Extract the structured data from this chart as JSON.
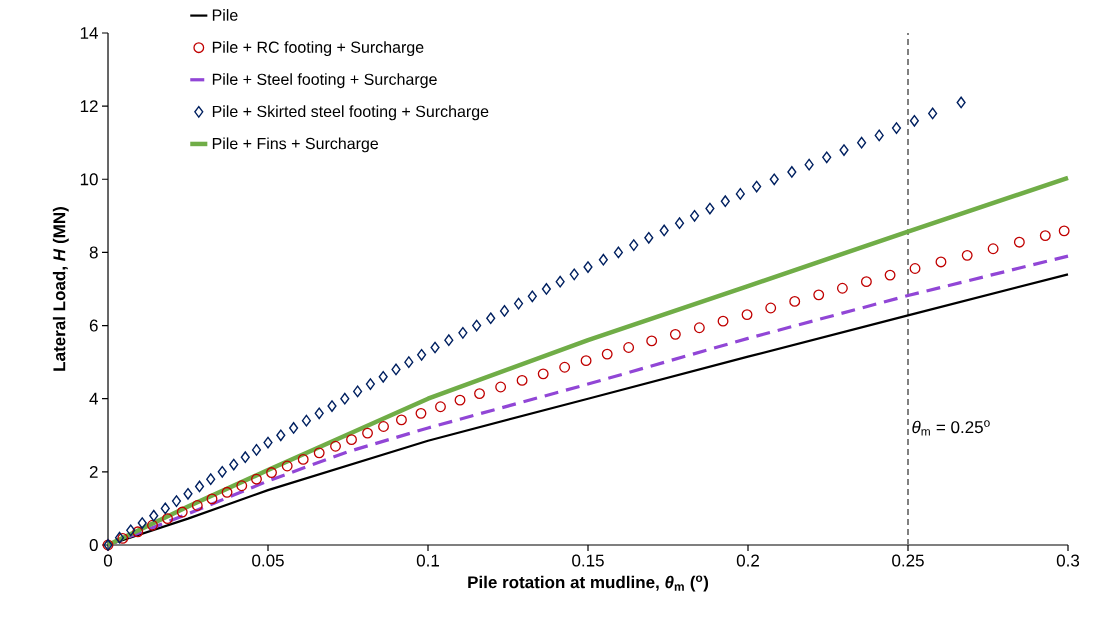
{
  "chart_data": {
    "type": "line",
    "xlabel": "Pile rotation at mudline, *θ*$_{m}$ ($^{o}$)",
    "ylabel": "Lateral Load, *H* (MN)",
    "xlim": [
      0,
      0.3
    ],
    "ylim": [
      0,
      14
    ],
    "xticks": [
      0,
      0.05,
      0.1,
      0.15,
      0.2,
      0.25,
      0.3
    ],
    "yticks": [
      0,
      2,
      4,
      6,
      8,
      10,
      12,
      14
    ],
    "grid": false,
    "legend": "top left",
    "ref_lines": [
      {
        "axis": "x",
        "value": 0.25,
        "label": "*θ*$_{m}$ = 0.25$^{o}$",
        "color": "#808080",
        "line_style": "dashed"
      }
    ],
    "series": [
      {
        "name": "Pile",
        "color": "#000000",
        "type": "line",
        "marker": "none",
        "line_style": "solid",
        "x": [
          0,
          0.025,
          0.05,
          0.1,
          0.15,
          0.2,
          0.25,
          0.3
        ],
        "values": [
          0,
          0.72,
          1.5,
          2.85,
          4.0,
          5.15,
          6.28,
          7.4
        ]
      },
      {
        "name": "Pile + RC footing + Surcharge",
        "color": "#c00000",
        "type": "scatter",
        "marker": "circle",
        "x": [
          0,
          0.0046,
          0.0093,
          0.0139,
          0.0186,
          0.0232,
          0.0279,
          0.0325,
          0.0372,
          0.0418,
          0.0464,
          0.0511,
          0.056,
          0.061,
          0.066,
          0.0711,
          0.0761,
          0.0811,
          0.0861,
          0.0917,
          0.0978,
          0.1039,
          0.11,
          0.1161,
          0.1227,
          0.1294,
          0.136,
          0.1427,
          0.1494,
          0.156,
          0.1627,
          0.1699,
          0.1773,
          0.1848,
          0.1922,
          0.1997,
          0.2071,
          0.2146,
          0.2221,
          0.2295,
          0.237,
          0.2444,
          0.2522,
          0.2603,
          0.2685,
          0.2766,
          0.2848,
          0.2929,
          0.2988
        ],
        "values": [
          0,
          0.18,
          0.36,
          0.54,
          0.72,
          0.9,
          1.08,
          1.26,
          1.44,
          1.62,
          1.8,
          1.98,
          2.16,
          2.34,
          2.52,
          2.7,
          2.88,
          3.06,
          3.24,
          3.42,
          3.6,
          3.78,
          3.96,
          4.14,
          4.32,
          4.5,
          4.68,
          4.86,
          5.04,
          5.22,
          5.4,
          5.58,
          5.76,
          5.94,
          6.12,
          6.3,
          6.48,
          6.66,
          6.84,
          7.02,
          7.2,
          7.38,
          7.56,
          7.74,
          7.92,
          8.1,
          8.28,
          8.46,
          8.59
        ]
      },
      {
        "name": "Pile + Steel footing + Surcharge",
        "color": "#9146d6",
        "type": "line",
        "marker": "none",
        "line_style": "dashed",
        "x": [
          0,
          0.025,
          0.05,
          0.075,
          0.1,
          0.15,
          0.2,
          0.25,
          0.3
        ],
        "values": [
          0,
          0.85,
          1.75,
          2.55,
          3.2,
          4.4,
          5.65,
          6.82,
          7.9
        ]
      },
      {
        "name": "Pile + Skirted steel footing + Surcharge",
        "color": "#002060",
        "type": "scatter",
        "marker": "diamond",
        "x": [
          0,
          0.0036,
          0.0071,
          0.0107,
          0.0143,
          0.0179,
          0.0214,
          0.025,
          0.0286,
          0.0321,
          0.0357,
          0.0393,
          0.0429,
          0.0464,
          0.05,
          0.054,
          0.058,
          0.062,
          0.066,
          0.07,
          0.074,
          0.078,
          0.082,
          0.086,
          0.09,
          0.094,
          0.098,
          0.1022,
          0.1065,
          0.1109,
          0.1152,
          0.1196,
          0.1239,
          0.1283,
          0.1326,
          0.137,
          0.1413,
          0.1457,
          0.15,
          0.1548,
          0.1595,
          0.1643,
          0.169,
          0.1738,
          0.1786,
          0.1833,
          0.1881,
          0.1929,
          0.1976,
          0.2027,
          0.2082,
          0.2137,
          0.2191,
          0.2246,
          0.23,
          0.2355,
          0.241,
          0.2464,
          0.252,
          0.2577,
          0.2666
        ],
        "values": [
          0,
          0.2,
          0.4,
          0.6,
          0.8,
          1.0,
          1.2,
          1.4,
          1.6,
          1.8,
          2.0,
          2.2,
          2.4,
          2.6,
          2.8,
          3.0,
          3.2,
          3.4,
          3.6,
          3.8,
          4.0,
          4.2,
          4.4,
          4.6,
          4.8,
          5.0,
          5.2,
          5.4,
          5.6,
          5.8,
          6.0,
          6.2,
          6.4,
          6.6,
          6.8,
          7.0,
          7.2,
          7.4,
          7.6,
          7.8,
          8.0,
          8.2,
          8.4,
          8.6,
          8.8,
          9.0,
          9.2,
          9.4,
          9.6,
          9.8,
          10.0,
          10.2,
          10.4,
          10.6,
          10.8,
          11.0,
          11.2,
          11.4,
          11.6,
          11.8,
          12.1
        ]
      },
      {
        "name": "Pile + Fins + Surcharge",
        "color": "#70ad47",
        "type": "line",
        "marker": "none",
        "line_style": "solid",
        "x": [
          0,
          0.025,
          0.05,
          0.1,
          0.15,
          0.2,
          0.25,
          0.3
        ],
        "values": [
          0,
          1.05,
          2.05,
          4.0,
          5.6,
          7.08,
          8.57,
          10.04
        ]
      }
    ]
  }
}
